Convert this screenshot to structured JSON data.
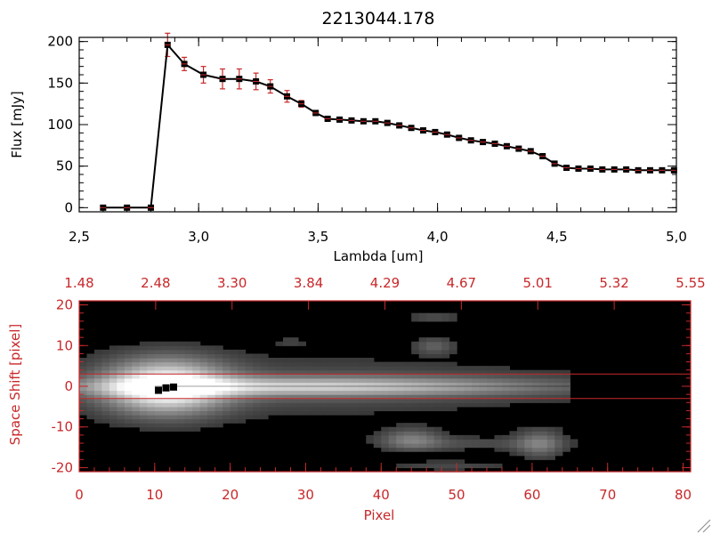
{
  "chart_data": [
    {
      "type": "line",
      "title": "2213044.178",
      "xlabel": "Lambda [um]",
      "ylabel": "Flux [mJy]",
      "xlim": [
        2.5,
        5.0
      ],
      "ylim": [
        -5,
        205
      ],
      "xticks": [
        "2.5",
        "3.0",
        "3.5",
        "4.0",
        "4.5",
        "5.0"
      ],
      "yticks": [
        "0",
        "50",
        "100",
        "150",
        "200"
      ],
      "series_color": "#000000",
      "errorbar_color": "#c8282a",
      "series": [
        {
          "x": [
            2.6,
            2.7,
            2.8,
            2.87,
            2.94,
            3.02,
            3.1,
            3.17,
            3.24,
            3.3,
            3.37,
            3.43,
            3.49,
            3.54,
            3.59,
            3.64,
            3.69,
            3.74,
            3.79,
            3.84,
            3.89,
            3.94,
            3.99,
            4.04,
            4.09,
            4.14,
            4.19,
            4.24,
            4.29,
            4.34,
            4.39,
            4.44,
            4.49,
            4.54,
            4.59,
            4.64,
            4.69,
            4.74,
            4.79,
            4.84,
            4.89,
            4.94,
            4.99
          ],
          "y": [
            0,
            0,
            0,
            196,
            173,
            160,
            155,
            155,
            152,
            146,
            134,
            125,
            114,
            107,
            106,
            105,
            104,
            104,
            102,
            99,
            96,
            93,
            91,
            88,
            84,
            81,
            79,
            77,
            74,
            71,
            68,
            62,
            53,
            48,
            47,
            47,
            46,
            46,
            46,
            45,
            45,
            45,
            45
          ],
          "err": [
            0,
            0,
            0,
            14,
            8,
            10,
            12,
            12,
            10,
            8,
            7,
            4,
            3,
            2,
            2,
            2,
            2,
            2,
            2,
            2,
            2,
            2,
            2,
            2,
            2,
            2,
            2,
            2,
            2,
            2,
            2,
            2,
            2,
            2,
            2,
            2,
            2,
            2,
            2,
            2,
            2,
            2,
            2
          ]
        }
      ]
    },
    {
      "type": "heatmap",
      "xlabel": "Pixel",
      "ylabel": "Space Shift [pixel]",
      "xlim": [
        0,
        81
      ],
      "ylim": [
        -21,
        21
      ],
      "xticks": [
        "0",
        "10",
        "20",
        "30",
        "40",
        "50",
        "60",
        "70",
        "80"
      ],
      "yticks": [
        "20",
        "10",
        "0",
        "-10",
        "-20"
      ],
      "top_xticks": [
        "1.48",
        "2.48",
        "3.30",
        "3.84",
        "4.29",
        "4.67",
        "5.01",
        "5.32",
        "5.55"
      ],
      "extraction_window": [
        -3,
        3
      ],
      "axis_color": "#c8282a",
      "trace_color": "#000000",
      "trace": {
        "x": [
          10.5,
          11.5,
          12.5
        ],
        "y": [
          -1.0,
          -0.4,
          -0.2
        ]
      },
      "sources": [
        {
          "x": 11.5,
          "y": 0.0,
          "sx": 5.5,
          "sy": 4.5,
          "amp": 1.0
        },
        {
          "x": 30.0,
          "y": 0.0,
          "sx": 22.0,
          "sy": 1.6,
          "amp": 0.62
        },
        {
          "x": 30.0,
          "y": 0.0,
          "sx": 24.0,
          "sy": 4.8,
          "amp": 0.16
        },
        {
          "x": 44.0,
          "y": -13.0,
          "sx": 2.8,
          "sy": 1.8,
          "amp": 0.34
        },
        {
          "x": 61.0,
          "y": -14.0,
          "sx": 2.2,
          "sy": 2.3,
          "amp": 0.34
        },
        {
          "x": 52.0,
          "y": -14.0,
          "sx": 7.0,
          "sy": 1.1,
          "amp": 0.14
        },
        {
          "x": 47.0,
          "y": 10.0,
          "sx": 1.8,
          "sy": 1.4,
          "amp": 0.22
        },
        {
          "x": 47.0,
          "y": 17.0,
          "sx": 2.5,
          "sy": 1.0,
          "amp": 0.14
        },
        {
          "x": 28.0,
          "y": 11.0,
          "sx": 1.5,
          "sy": 1.0,
          "amp": 0.09
        },
        {
          "x": 49.0,
          "y": -19.5,
          "sx": 6.0,
          "sy": 0.9,
          "amp": 0.12
        }
      ],
      "cutoff_x": 65
    }
  ]
}
